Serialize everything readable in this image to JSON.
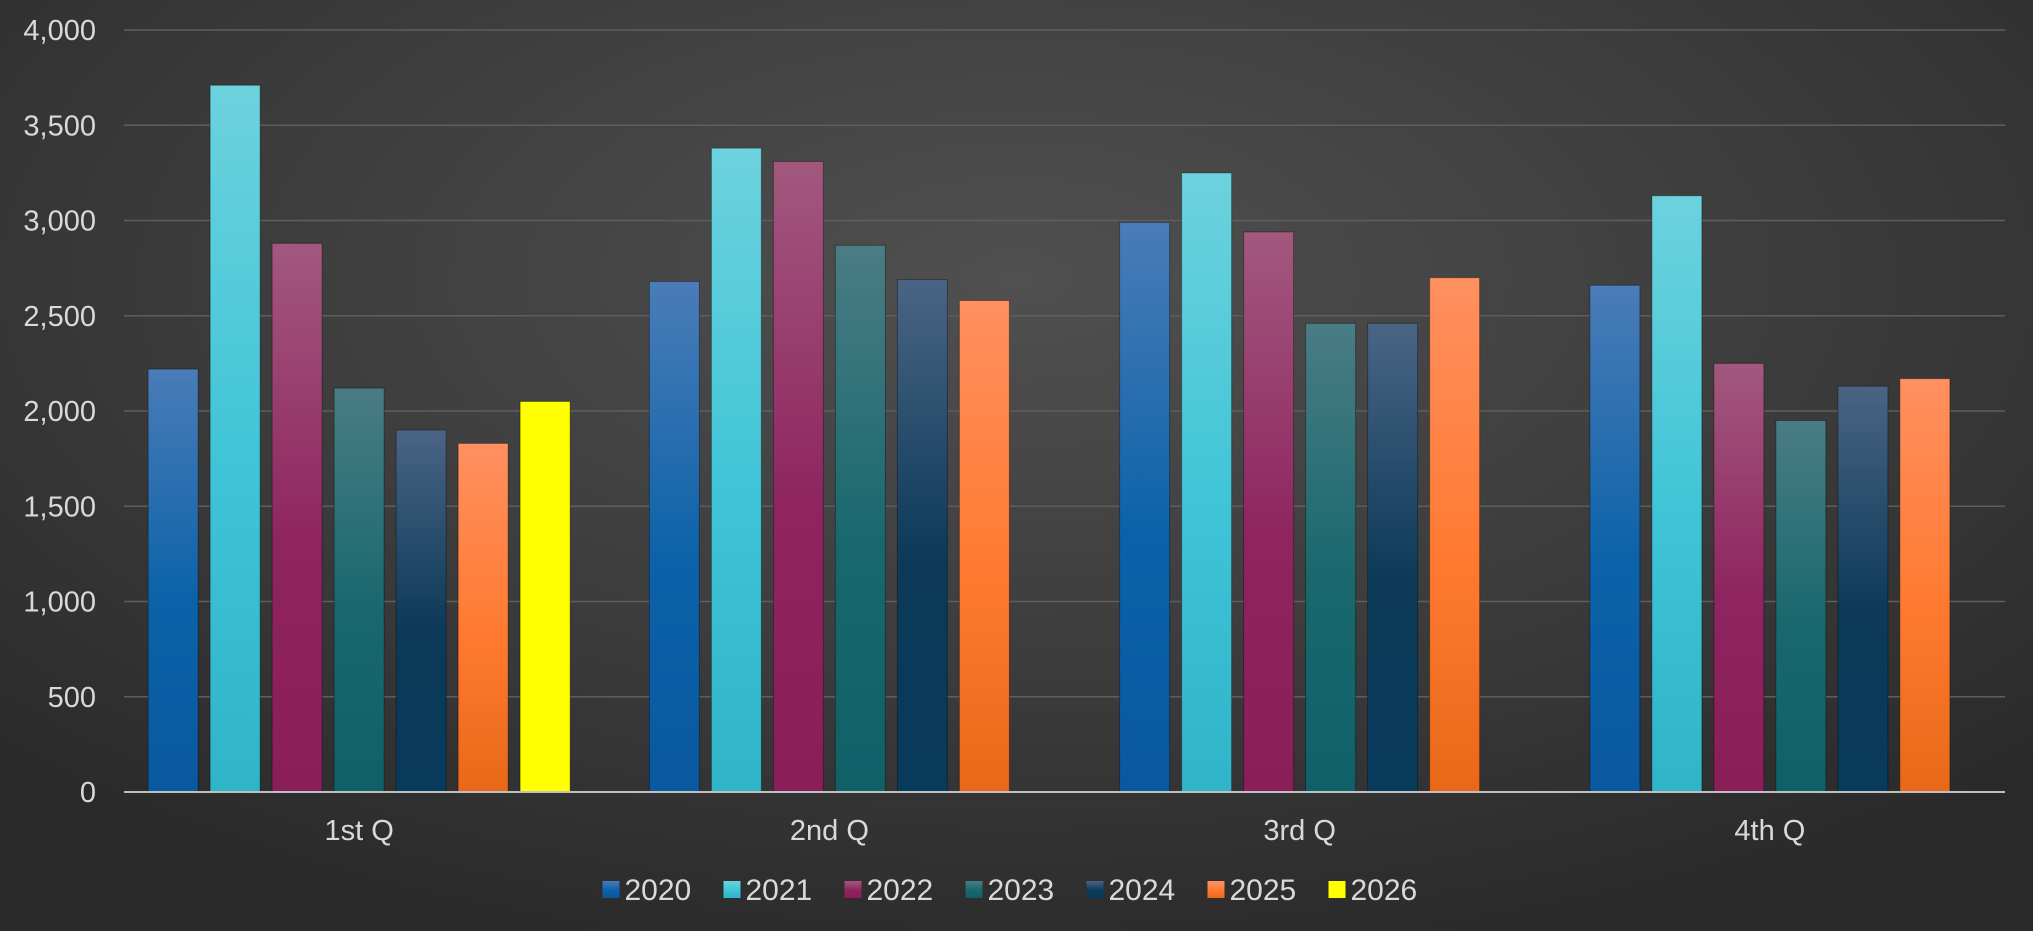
{
  "chart_data": {
    "type": "bar",
    "categories": [
      "1st Q",
      "2nd Q",
      "3rd Q",
      "4th Q"
    ],
    "series": [
      {
        "name": "2020",
        "values": [
          2220,
          2680,
          2990,
          2660
        ]
      },
      {
        "name": "2021",
        "values": [
          3710,
          3380,
          3250,
          3130
        ]
      },
      {
        "name": "2022",
        "values": [
          2880,
          3310,
          2940,
          2250
        ]
      },
      {
        "name": "2023",
        "values": [
          2120,
          2870,
          2460,
          1950
        ]
      },
      {
        "name": "2024",
        "values": [
          1900,
          2690,
          2460,
          2130
        ]
      },
      {
        "name": "2025",
        "values": [
          1830,
          2580,
          2700,
          2170
        ]
      },
      {
        "name": "2026",
        "values": [
          2050,
          null,
          null,
          null
        ]
      }
    ],
    "ylim": [
      0,
      4000
    ],
    "yticks": [
      "0",
      "500",
      "1,000",
      "1,500",
      "2,000",
      "2,500",
      "3,000",
      "3,500",
      "4,000"
    ],
    "grid": true,
    "legend_position": "bottom",
    "colors": {
      "2020": [
        "#4a7cb8",
        "#0b62a8",
        "#0a58a0"
      ],
      "2021": [
        "#6cd2de",
        "#3ec4d6",
        "#30b4c8"
      ],
      "2022": [
        "#a2587e",
        "#8e2460",
        "#8a1e58"
      ],
      "2023": [
        "#4a7c84",
        "#18686e",
        "#0f6068"
      ],
      "2024": [
        "#4a6484",
        "#0c3a58",
        "#083a5c"
      ],
      "2025": [
        "#ff9060",
        "#ff7a30",
        "#e86818"
      ],
      "2026": [
        "#ffff00",
        "#ffff00",
        "#ffff00"
      ],
      "axis": "#bfbfbf",
      "grid": "#5e5e5e",
      "text": "#d9d9d9"
    }
  }
}
